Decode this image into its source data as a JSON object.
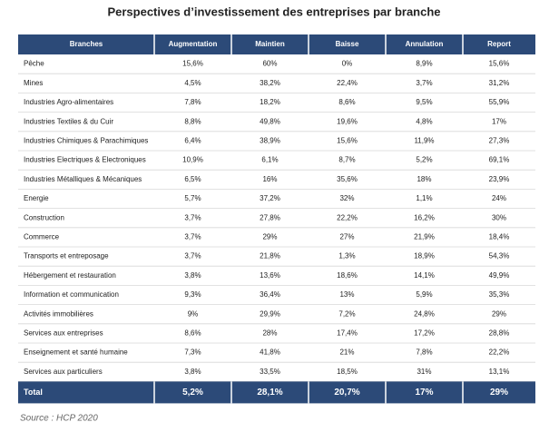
{
  "title": "Perspectives d’investissement des entreprises par branche",
  "table": {
    "header": [
      "Branches",
      "Augmentation",
      "Maintien",
      "Baisse",
      "Annulation",
      "Report"
    ],
    "rows": [
      [
        "Pêche",
        "15,6%",
        "60%",
        "0%",
        "8,9%",
        "15,6%"
      ],
      [
        "Mines",
        "4,5%",
        "38,2%",
        "22,4%",
        "3,7%",
        "31,2%"
      ],
      [
        "Industries Agro-alimentaires",
        "7,8%",
        "18,2%",
        "8,6%",
        "9,5%",
        "55,9%"
      ],
      [
        "Industries Textiles & du Cuir",
        "8,8%",
        "49,8%",
        "19,6%",
        "4,8%",
        "17%"
      ],
      [
        "Industries Chimiques & Parachimiques",
        "6,4%",
        "38,9%",
        "15,6%",
        "11,9%",
        "27,3%"
      ],
      [
        "Industries Electriques & Electroniques",
        "10,9%",
        "6,1%",
        "8,7%",
        "5,2%",
        "69,1%"
      ],
      [
        "Industries Métalliques & Mécaniques",
        "6,5%",
        "16%",
        "35,6%",
        "18%",
        "23,9%"
      ],
      [
        "Energie",
        "5,7%",
        "37,2%",
        "32%",
        "1,1%",
        "24%"
      ],
      [
        "Construction",
        "3,7%",
        "27,8%",
        "22,2%",
        "16,2%",
        "30%"
      ],
      [
        "Commerce",
        "3,7%",
        "29%",
        "27%",
        "21,9%",
        "18,4%"
      ],
      [
        "Transports et entreposage",
        "3,7%",
        "21,8%",
        "1,3%",
        "18,9%",
        "54,3%"
      ],
      [
        "Hébergement et restauration",
        "3,8%",
        "13,6%",
        "18,6%",
        "14,1%",
        "49,9%"
      ],
      [
        "Information et communication",
        "9,3%",
        "36,4%",
        "13%",
        "5,9%",
        "35,3%"
      ],
      [
        "Activités immobilières",
        "9%",
        "29,9%",
        "7,2%",
        "24,8%",
        "29%"
      ],
      [
        "Services aux entreprises",
        "8,6%",
        "28%",
        "17,4%",
        "17,2%",
        "28,8%"
      ],
      [
        "Enseignement et santé humaine",
        "7,3%",
        "41,8%",
        "21%",
        "7,8%",
        "22,2%"
      ],
      [
        "Services aux particuliers",
        "3,8%",
        "33,5%",
        "18,5%",
        "31%",
        "13,1%"
      ]
    ],
    "total": [
      "Total",
      "5,2%",
      "28,1%",
      "20,7%",
      "17%",
      "29%"
    ]
  },
  "source": "Source : HCP 2020"
}
